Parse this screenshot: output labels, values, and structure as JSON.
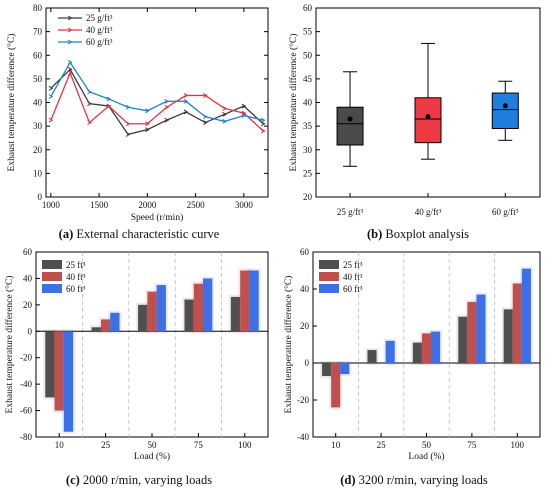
{
  "colors": {
    "s25_line": "#3a3a3a",
    "s40_line": "#e8333c",
    "s60_line": "#1e84d8",
    "box25": "#4a4a4a",
    "box40": "#ee3a44",
    "box60": "#1f7fe0",
    "bar25": "#4f4f4f",
    "bar40": "#c0504d",
    "bar60": "#3d6fe6"
  },
  "captions": {
    "a_letter": "(a)",
    "a_text": " External characteristic curve",
    "b_letter": "(b)",
    "b_text": " Boxplot analysis",
    "c_letter": "(c)",
    "c_text": " 2000 r/min, varying loads",
    "d_letter": "(d)",
    "d_text": " 3200 r/min, varying loads"
  },
  "chart_data": [
    {
      "id": "a",
      "type": "line",
      "xlabel": "Speed (r/min)",
      "ylabel": "Exhaust temperature difference (°C)",
      "xlim": [
        950,
        3250
      ],
      "ylim": [
        0,
        80
      ],
      "xticks": [
        1000,
        1500,
        2000,
        2500,
        3000
      ],
      "yticks": [
        0,
        10,
        20,
        30,
        40,
        50,
        60,
        70,
        80
      ],
      "legend_position": "top-left",
      "series": [
        {
          "name": "25 g/ft³",
          "x": [
            1000,
            1200,
            1400,
            1600,
            1800,
            2000,
            2200,
            2400,
            2600,
            2800,
            3000,
            3200
          ],
          "y": [
            46,
            54,
            39.5,
            38.5,
            26.5,
            28.5,
            32.5,
            36,
            31.5,
            35,
            38.5,
            31
          ]
        },
        {
          "name": "40 g/ft³",
          "x": [
            1000,
            1200,
            1400,
            1600,
            1800,
            2000,
            2200,
            2400,
            2600,
            2800,
            3000,
            3200
          ],
          "y": [
            32.5,
            52.5,
            31.5,
            38.5,
            31,
            31,
            38,
            43,
            43,
            37.5,
            35.5,
            28
          ]
        },
        {
          "name": "60 g/ft³",
          "x": [
            1000,
            1200,
            1400,
            1600,
            1800,
            2000,
            2200,
            2400,
            2600,
            2800,
            3000,
            3200
          ],
          "y": [
            42.5,
            57,
            44.5,
            41.5,
            38,
            36.5,
            40.5,
            40.5,
            34,
            32,
            34.5,
            32.5
          ]
        }
      ]
    },
    {
      "id": "b",
      "type": "box",
      "ylabel": "Exhaust temperature difference (°C)",
      "ylim": [
        20,
        60
      ],
      "yticks": [
        20,
        25,
        30,
        35,
        40,
        45,
        50,
        55,
        60
      ],
      "categories": [
        "25 g/ft³",
        "40 g/ft³",
        "60 g/ft³"
      ],
      "boxes": [
        {
          "min": 26.5,
          "q1": 31.0,
          "median": 35.5,
          "q3": 39.0,
          "max": 46.5,
          "mean": 36.5
        },
        {
          "min": 28.0,
          "q1": 31.5,
          "median": 36.5,
          "q3": 41.0,
          "max": 52.5,
          "mean": 37.0
        },
        {
          "min": 32.0,
          "q1": 34.5,
          "median": 38.5,
          "q3": 42.0,
          "max": 44.5,
          "mean": 39.3
        }
      ]
    },
    {
      "id": "c",
      "type": "bar",
      "xlabel": "Load (%)",
      "ylabel": "Exhaust temperature difference (°C)",
      "ylim": [
        -80,
        60
      ],
      "yticks": [
        -80,
        -60,
        -40,
        -20,
        0,
        20,
        40,
        60
      ],
      "categories": [
        "10",
        "25",
        "50",
        "75",
        "100"
      ],
      "legend_position": "top-left",
      "series": [
        {
          "name": "25 ft³",
          "values": [
            -50,
            3,
            20,
            24,
            26
          ]
        },
        {
          "name": "40 ft³",
          "values": [
            -60,
            9,
            30,
            36,
            46
          ]
        },
        {
          "name": "60 ft³",
          "values": [
            -76,
            14,
            35,
            40,
            46
          ]
        }
      ]
    },
    {
      "id": "d",
      "type": "bar",
      "xlabel": "Load (%)",
      "ylabel": "Exhaust temperature difference (°C)",
      "ylim": [
        -40,
        60
      ],
      "yticks": [
        -40,
        -20,
        0,
        20,
        40,
        60
      ],
      "categories": [
        "10",
        "25",
        "50",
        "75",
        "100"
      ],
      "legend_position": "top-left",
      "series": [
        {
          "name": "25 ft³",
          "values": [
            -7,
            7,
            11,
            25,
            29
          ]
        },
        {
          "name": "40 ft³",
          "values": [
            -24,
            0,
            16,
            33,
            43
          ]
        },
        {
          "name": "60 ft³",
          "values": [
            -6,
            12,
            17,
            37,
            51
          ]
        }
      ]
    }
  ]
}
